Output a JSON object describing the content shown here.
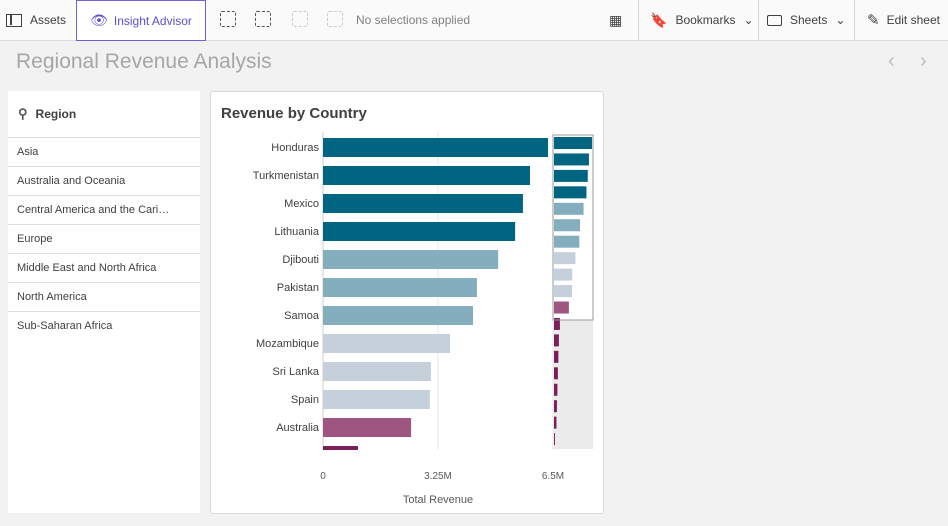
{
  "toolbar": {
    "assets": "Assets",
    "insight_advisor": "Insight Advisor",
    "selections": "No selections applied",
    "bookmarks": "Bookmarks",
    "sheets": "Sheets",
    "edit_sheet": "Edit sheet"
  },
  "sheet": {
    "title": "Regional Revenue Analysis"
  },
  "filter": {
    "title": "Region",
    "items": [
      "Asia",
      "Australia and Oceania",
      "Central America and the Cari…",
      "Europe",
      "Middle East and North Africa",
      "North America",
      "Sub-Saharan Africa"
    ]
  },
  "colors": {
    "accent": "#6e62d6",
    "dark_teal": "#006580",
    "light_teal": "#84adbe",
    "gray": "#c5d0db",
    "mauve": "#9e5580",
    "magenta": "#7a1f5a"
  },
  "chart_data": {
    "type": "bar",
    "orientation": "horizontal",
    "title": "Revenue by Country",
    "xlabel": "Total Revenue",
    "ylabel": "",
    "xlim": [
      0,
      6500000
    ],
    "xticks": [
      0,
      3250000,
      6500000
    ],
    "xtick_labels": [
      "0",
      "3.25M",
      "6.5M"
    ],
    "grid": true,
    "categories": [
      "Honduras",
      "Turkmenistan",
      "Mexico",
      "Lithuania",
      "Djibouti",
      "Pakistan",
      "Samoa",
      "Mozambique",
      "Sri Lanka",
      "Spain",
      "Australia",
      "",
      "",
      "",
      "",
      "",
      "",
      "",
      ""
    ],
    "values": [
      6360000,
      5850000,
      5650000,
      5430000,
      4950000,
      4350000,
      4240000,
      3590000,
      3050000,
      3020000,
      2490000,
      990000,
      820000,
      730000,
      650000,
      570000,
      490000,
      410000,
      160000
    ],
    "bar_colors": [
      "#006580",
      "#006580",
      "#006580",
      "#006580",
      "#84adbe",
      "#84adbe",
      "#84adbe",
      "#c5d0db",
      "#c5d0db",
      "#c5d0db",
      "#9e5580",
      "#7a1f5a",
      "#7a1f5a",
      "#7a1f5a",
      "#7a1f5a",
      "#7a1f5a",
      "#7a1f5a",
      "#7a1f5a",
      "#7a1f5a"
    ],
    "scrollbar": "minimap-right"
  }
}
